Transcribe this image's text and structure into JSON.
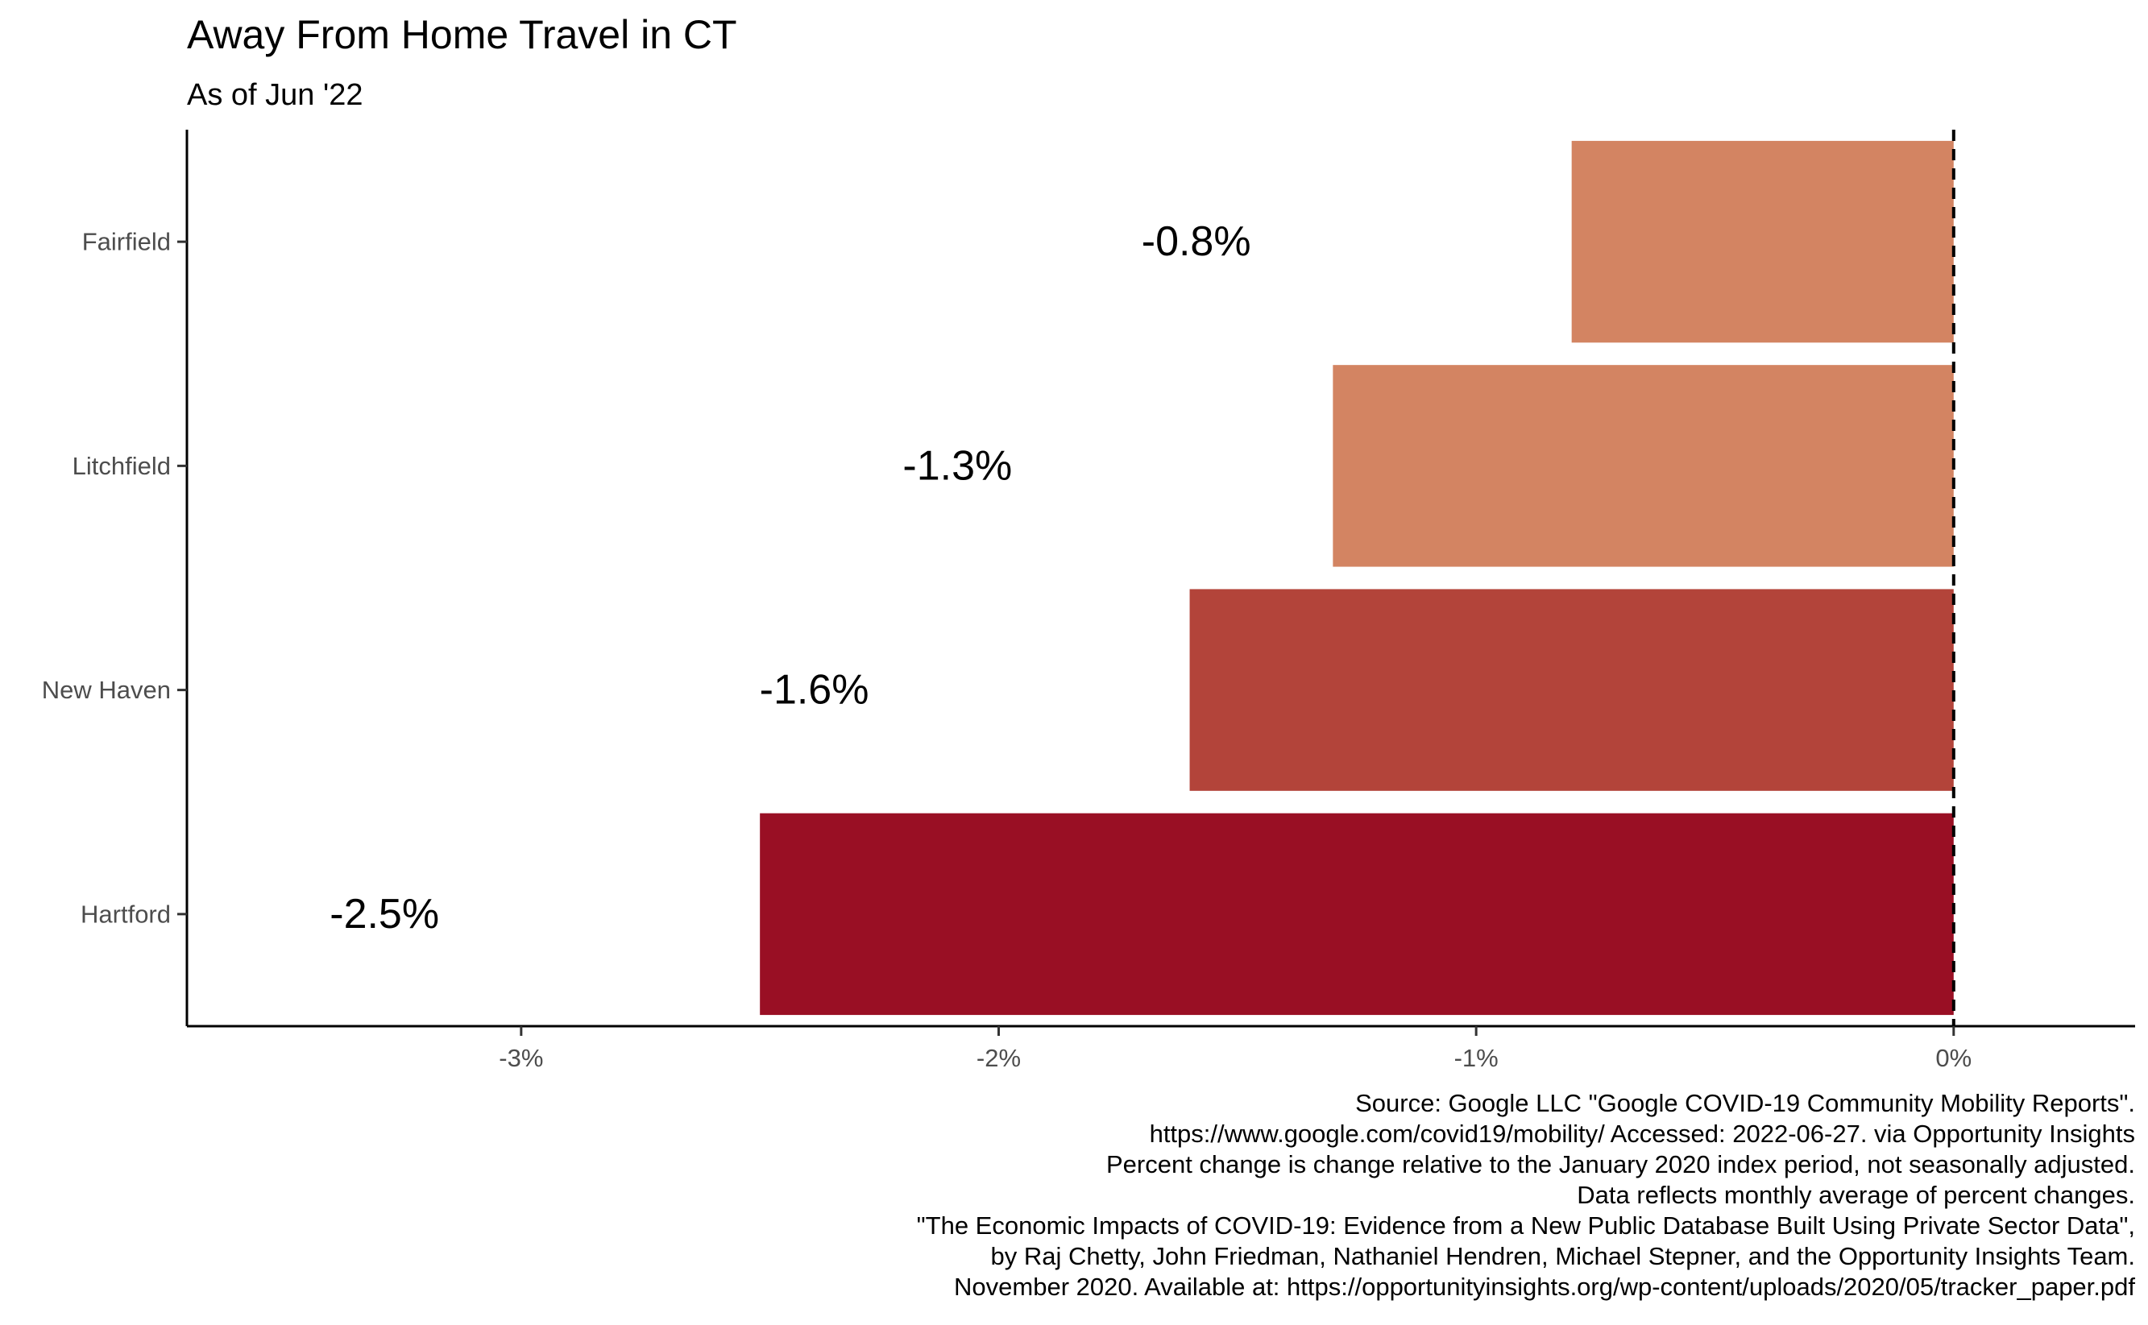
{
  "chart_data": {
    "type": "bar",
    "orientation": "horizontal",
    "title": "Away From Home Travel in CT",
    "subtitle": "As of Jun '22",
    "categories": [
      "Fairfield",
      "Litchfield",
      "New Haven",
      "Hartford"
    ],
    "values": [
      -0.8,
      -1.3,
      -1.6,
      -2.5
    ],
    "value_labels": [
      "-0.8%",
      "-1.3%",
      "-1.6%",
      "-2.5%"
    ],
    "bar_colors": [
      "#D38462",
      "#D38462",
      "#B3443A",
      "#990F24"
    ],
    "xlim": [
      -3.7,
      0.38
    ],
    "x_ticks": [
      -3,
      -2,
      -1,
      0
    ],
    "x_tick_labels": [
      "-3%",
      "-2%",
      "-1%",
      "0%"
    ],
    "reference_line": {
      "x": 0,
      "style": "dashed"
    },
    "grid": false,
    "caption_lines": [
      "Source: Google LLC \"Google COVID-19 Community Mobility Reports\".",
      "https://www.google.com/covid19/mobility/ Accessed: 2022-06-27. via Opportunity Insights",
      "Percent change is change relative to the January 2020 index period, not seasonally adjusted.",
      "Data reflects monthly average of percent changes.",
      "\"The Economic Impacts of COVID-19: Evidence from a New Public Database Built Using Private Sector Data\",",
      "by Raj Chetty, John Friedman, Nathaniel Hendren, Michael Stepner, and the Opportunity Insights Team.",
      "November 2020. Available at: https://opportunityinsights.org/wp-content/uploads/2020/05/tracker_paper.pdf"
    ]
  }
}
